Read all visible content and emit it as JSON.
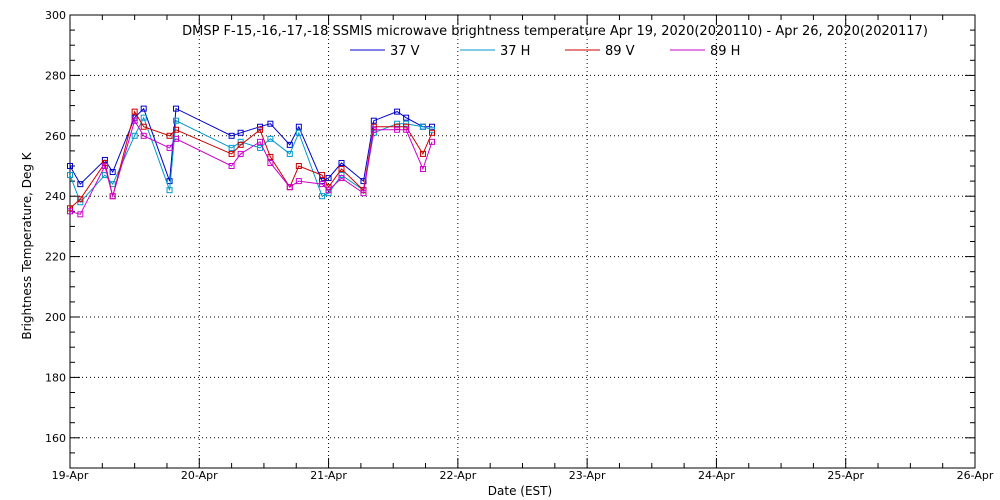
{
  "chart_data": {
    "type": "line",
    "title": "DMSP F-15,-16,-17,-18 SSMIS microwave brightness temperature Apr 19, 2020(2020110) - Apr 26, 2020(2020117)",
    "xlabel": "Date (EST)",
    "ylabel": "Brightness Temperature, Deg K",
    "xlim": [
      0,
      7
    ],
    "ylim": [
      150,
      300
    ],
    "x_ticks": [
      "19-Apr",
      "20-Apr",
      "21-Apr",
      "22-Apr",
      "23-Apr",
      "24-Apr",
      "25-Apr",
      "26-Apr"
    ],
    "y_ticks": [
      160,
      180,
      200,
      220,
      240,
      260,
      280,
      300
    ],
    "grid": true,
    "legend_position": "top-center",
    "series": [
      {
        "name": "37 V",
        "color": "#0000cc",
        "x": [
          0.0,
          0.08,
          0.27,
          0.33,
          0.5,
          0.57,
          0.77,
          0.82,
          1.25,
          1.32,
          1.47,
          1.55,
          1.7,
          1.77,
          1.95,
          2.0,
          2.1,
          2.27,
          2.35,
          2.53,
          2.6,
          2.73,
          2.8
        ],
        "y": [
          250,
          244,
          252,
          248,
          266,
          269,
          245,
          269,
          260,
          261,
          263,
          264,
          257,
          263,
          245,
          246,
          251,
          245,
          265,
          268,
          266,
          263,
          263
        ]
      },
      {
        "name": "37 H",
        "color": "#0099cc",
        "x": [
          0.0,
          0.08,
          0.27,
          0.33,
          0.5,
          0.57,
          0.77,
          0.82,
          1.25,
          1.32,
          1.47,
          1.55,
          1.7,
          1.77,
          1.95,
          2.0,
          2.1,
          2.27,
          2.35,
          2.53,
          2.6,
          2.73,
          2.8
        ],
        "y": [
          247,
          238,
          247,
          244,
          260,
          266,
          242,
          265,
          256,
          258,
          256,
          259,
          254,
          261,
          240,
          241,
          247,
          242,
          261,
          264,
          264,
          263,
          262
        ]
      },
      {
        "name": "89 V",
        "color": "#cc0000",
        "x": [
          0.0,
          0.08,
          0.27,
          0.33,
          0.5,
          0.57,
          0.77,
          0.82,
          1.25,
          1.32,
          1.47,
          1.55,
          1.7,
          1.77,
          1.95,
          2.0,
          2.1,
          2.27,
          2.35,
          2.53,
          2.6,
          2.73,
          2.8
        ],
        "y": [
          236,
          239,
          251,
          240,
          268,
          263,
          260,
          262,
          254,
          257,
          262,
          253,
          243,
          250,
          247,
          243,
          249,
          242,
          263,
          263,
          263,
          254,
          261
        ]
      },
      {
        "name": "89 H",
        "color": "#cc00cc",
        "x": [
          0.0,
          0.08,
          0.27,
          0.33,
          0.5,
          0.57,
          0.77,
          0.82,
          1.25,
          1.32,
          1.47,
          1.55,
          1.7,
          1.77,
          1.95,
          2.0,
          2.1,
          2.27,
          2.35,
          2.53,
          2.6,
          2.73,
          2.8
        ],
        "y": [
          235,
          234,
          250,
          240,
          265,
          260,
          256,
          259,
          250,
          254,
          258,
          251,
          243,
          245,
          244,
          242,
          246,
          241,
          262,
          262,
          262,
          249,
          258
        ]
      }
    ]
  }
}
